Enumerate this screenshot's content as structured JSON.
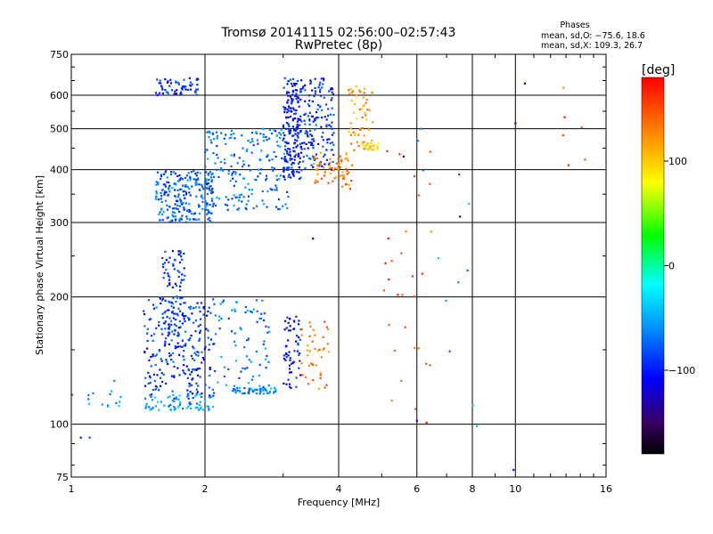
{
  "header": {
    "title": "Tromsø 20141115 02:56:00–02:57:43",
    "subtitle": "RwPretec (8p)"
  },
  "stats": {
    "heading": "Phases",
    "line_o": "mean, sd,O: −75.6, 18.6",
    "line_x": "mean, sd,X: 109.3, 26.7"
  },
  "colorbar": {
    "unit": "[deg]",
    "tick_labels": [
      "100",
      "0",
      "−100"
    ],
    "tick_values": [
      100,
      0,
      -100
    ],
    "range": [
      -180,
      180
    ],
    "colormap": "rainbow (black-purple-blue-cyan-green-yellow-orange-red)"
  },
  "chart_data": {
    "type": "scatter",
    "xlabel": "Frequency [MHz]",
    "ylabel": "Stationary phase Virtual Height [km]",
    "x_scale": "log",
    "y_scale": "log",
    "xlim": [
      1,
      16
    ],
    "ylim": [
      75,
      750
    ],
    "x_ticks": [
      1,
      2,
      4,
      6,
      8,
      10,
      16
    ],
    "x_tick_labels": [
      "1",
      "2",
      "4",
      "6",
      "8",
      "10",
      "16"
    ],
    "y_ticks": [
      75,
      100,
      200,
      300,
      400,
      500,
      600,
      750
    ],
    "y_tick_labels": [
      "75",
      "100",
      "200",
      "300",
      "400",
      "500",
      "600",
      "750"
    ],
    "grid": true,
    "color_variable": "phase [deg]",
    "clusters": [
      {
        "x": [
          1.55,
          1.95
        ],
        "y": [
          600,
          660
        ],
        "phase": -95,
        "n": 60
      },
      {
        "x": [
          1.55,
          2.1
        ],
        "y": [
          300,
          400
        ],
        "phase": -75,
        "n": 240
      },
      {
        "x": [
          2.0,
          3.1
        ],
        "y": [
          320,
          500
        ],
        "phase": -70,
        "n": 200
      },
      {
        "x": [
          3.0,
          3.3
        ],
        "y": [
          380,
          660
        ],
        "phase": -100,
        "n": 200
      },
      {
        "x": [
          3.3,
          3.9
        ],
        "y": [
          400,
          660
        ],
        "phase": -90,
        "n": 150
      },
      {
        "x": [
          3.5,
          4.3
        ],
        "y": [
          360,
          440
        ],
        "phase": 130,
        "n": 70
      },
      {
        "x": [
          4.2,
          4.8
        ],
        "y": [
          440,
          640
        ],
        "phase": 120,
        "n": 60
      },
      {
        "x": [
          4.5,
          4.9
        ],
        "y": [
          445,
          465
        ],
        "phase": 90,
        "n": 20
      },
      {
        "x": [
          1.6,
          1.8
        ],
        "y": [
          160,
          260
        ],
        "phase": -95,
        "n": 90
      },
      {
        "x": [
          1.45,
          2.1
        ],
        "y": [
          115,
          200
        ],
        "phase": -90,
        "n": 240
      },
      {
        "x": [
          1.45,
          2.1
        ],
        "y": [
          108,
          118
        ],
        "phase": -55,
        "n": 70
      },
      {
        "x": [
          2.1,
          2.8
        ],
        "y": [
          120,
          200
        ],
        "phase": -65,
        "n": 80
      },
      {
        "x": [
          2.3,
          2.9
        ],
        "y": [
          118,
          122
        ],
        "phase": -60,
        "n": 50
      },
      {
        "x": [
          3.0,
          3.3
        ],
        "y": [
          120,
          180
        ],
        "phase": -100,
        "n": 60
      },
      {
        "x": [
          3.3,
          3.8
        ],
        "y": [
          120,
          175
        ],
        "phase": 130,
        "n": 40
      },
      {
        "x": [
          1.0,
          1.3
        ],
        "y": [
          108,
          130
        ],
        "phase": -55,
        "n": 15
      },
      {
        "x": [
          5.0,
          6.5
        ],
        "y": [
          100,
          460
        ],
        "phase": 150,
        "n": 30
      },
      {
        "x": [
          6.0,
          9.0
        ],
        "y": [
          80,
          600
        ],
        "phase": -60,
        "n": 12
      },
      {
        "x": [
          11.5,
          14.5
        ],
        "y": [
          380,
          660
        ],
        "phase": 150,
        "n": 6
      }
    ],
    "points": [
      {
        "x": 3.5,
        "y": 275,
        "phase": -110
      },
      {
        "x": 1.05,
        "y": 93,
        "phase": -100
      },
      {
        "x": 1.1,
        "y": 93,
        "phase": -85
      },
      {
        "x": 9.9,
        "y": 78,
        "phase": -100
      },
      {
        "x": 6.0,
        "y": 102,
        "phase": -110
      },
      {
        "x": 7.5,
        "y": 310,
        "phase": -110
      },
      {
        "x": 10.5,
        "y": 640,
        "phase": -110
      },
      {
        "x": 10.0,
        "y": 515,
        "phase": -110
      },
      {
        "x": 5.6,
        "y": 430,
        "phase": -120
      }
    ]
  }
}
